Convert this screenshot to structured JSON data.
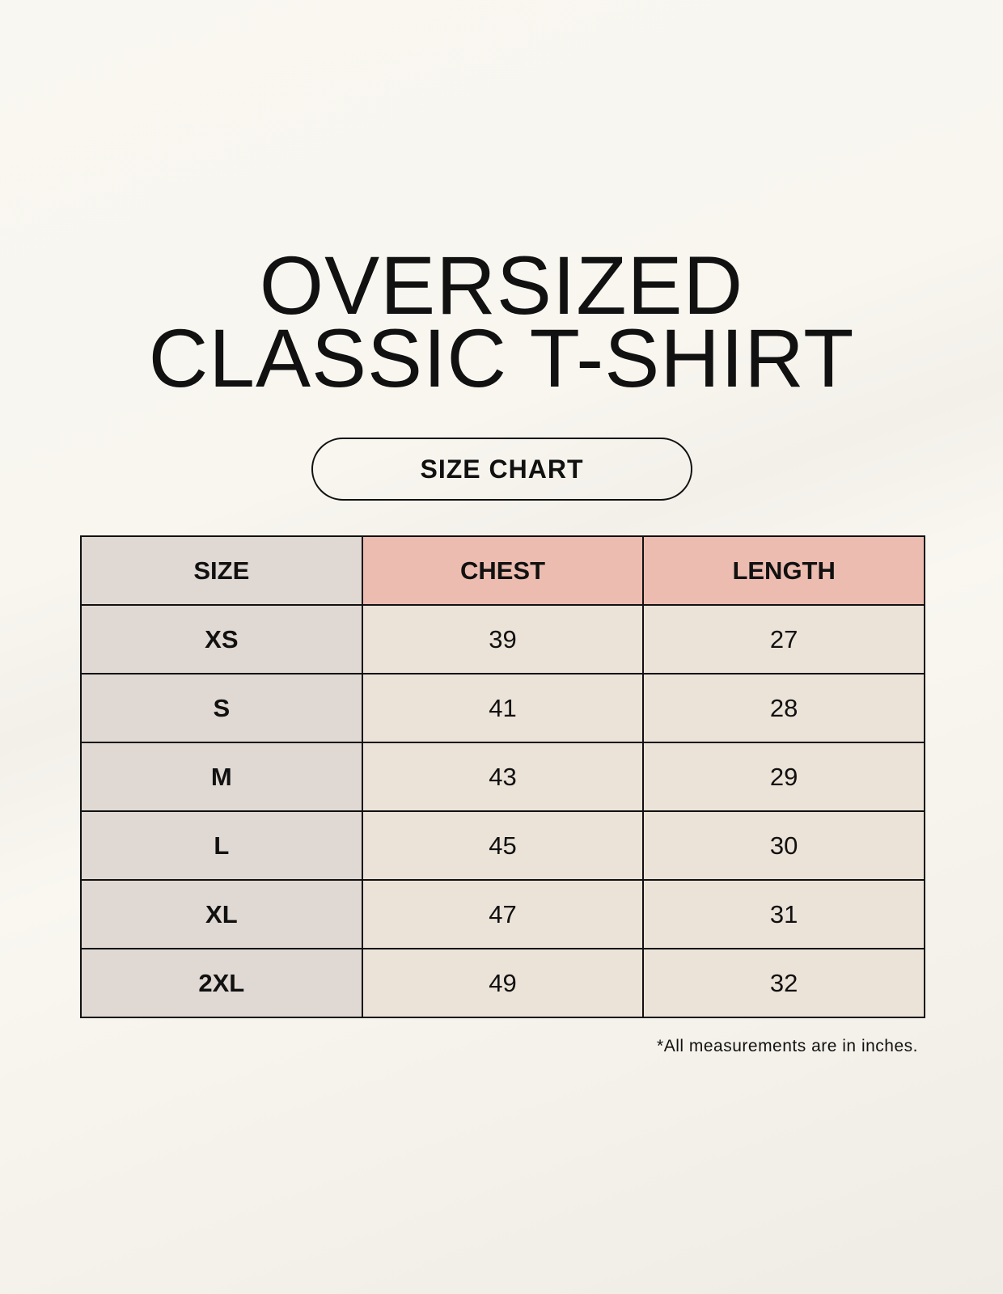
{
  "title": {
    "line1": "OVERSIZED",
    "line2": "CLASSIC T-SHIRT"
  },
  "badge": "SIZE CHART",
  "table": {
    "headers": [
      "SIZE",
      "CHEST",
      "LENGTH"
    ],
    "rows": [
      [
        "XS",
        "39",
        "27"
      ],
      [
        "S",
        "41",
        "28"
      ],
      [
        "M",
        "43",
        "29"
      ],
      [
        "L",
        "45",
        "30"
      ],
      [
        "XL",
        "47",
        "31"
      ],
      [
        "2XL",
        "49",
        "32"
      ]
    ]
  },
  "footnote": "*All measurements are in inches.",
  "colors": {
    "size_column": "#e0d8d2",
    "header_accent": "#edbcb0",
    "cell": "#ebe2d8"
  }
}
